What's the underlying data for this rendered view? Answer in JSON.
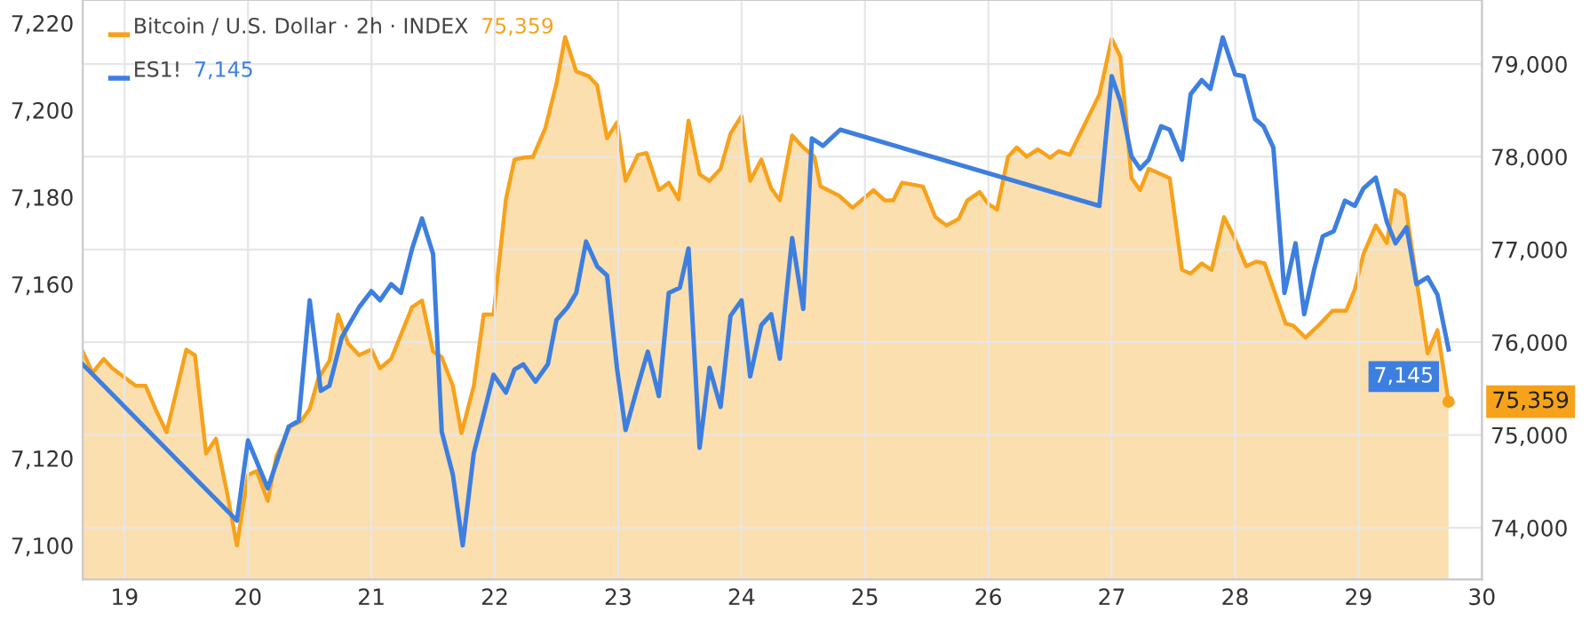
{
  "chart_data": {
    "type": "line",
    "xlim": [
      18.66,
      30.0
    ],
    "xticks": [
      19,
      20,
      21,
      22,
      23,
      24,
      25,
      26,
      27,
      28,
      29,
      30
    ],
    "ylim": [
      7092.2,
      7225.3
    ],
    "yticks": [
      {
        "value": 7100,
        "label": "7,100"
      },
      {
        "value": 7120,
        "label": "7,120"
      },
      {
        "value": 7160,
        "label": "7,160"
      },
      {
        "value": 7180,
        "label": "7,180"
      },
      {
        "value": 7200,
        "label": "7,200"
      },
      {
        "value": 7220,
        "label": "7,220"
      }
    ],
    "y2lim": [
      73444,
      79690
    ],
    "y2ticks": [
      {
        "value": 74000,
        "label": "74,000"
      },
      {
        "value": 75000,
        "label": "75,000"
      },
      {
        "value": 76000,
        "label": "76,000"
      },
      {
        "value": 77000,
        "label": "77,000"
      },
      {
        "value": 78000,
        "label": "78,000"
      },
      {
        "value": 79000,
        "label": "79,000"
      }
    ],
    "grid": true,
    "legend": "top left",
    "annotations": [
      "75,359",
      "7,145"
    ],
    "series": [
      {
        "name": "Bitcoin / U.S. Dollar · 2h · INDEX",
        "type": "area",
        "axis": "y2",
        "color": "#f7a21b",
        "x": [
          18.66,
          18.74,
          18.83,
          18.9,
          19.09,
          19.17,
          19.26,
          19.34,
          19.43,
          19.5,
          19.57,
          19.66,
          19.74,
          19.83,
          19.91,
          20.0,
          20.07,
          20.16,
          20.23,
          20.34,
          20.43,
          20.5,
          20.57,
          20.66,
          20.73,
          20.81,
          20.9,
          21.0,
          21.07,
          21.16,
          21.33,
          21.41,
          21.5,
          21.57,
          21.66,
          21.73,
          21.83,
          21.91,
          21.99,
          22.09,
          22.16,
          22.23,
          22.31,
          22.41,
          22.5,
          22.57,
          22.66,
          22.76,
          22.83,
          22.91,
          22.99,
          23.06,
          23.16,
          23.23,
          23.33,
          23.41,
          23.49,
          23.57,
          23.66,
          23.74,
          23.83,
          23.91,
          24.0,
          24.07,
          24.16,
          24.24,
          24.31,
          24.41,
          24.5,
          24.59,
          24.64,
          24.79,
          24.9,
          25.07,
          25.16,
          25.23,
          25.3,
          25.47,
          25.57,
          25.66,
          25.76,
          25.83,
          25.93,
          26.0,
          26.07,
          26.16,
          26.23,
          26.31,
          26.4,
          26.5,
          26.57,
          26.66,
          26.9,
          27.0,
          27.07,
          27.16,
          27.23,
          27.3,
          27.37,
          27.47,
          27.57,
          27.64,
          27.73,
          27.81,
          27.91,
          27.99,
          28.09,
          28.17,
          28.24,
          28.41,
          28.47,
          28.57,
          28.69,
          28.79,
          28.9,
          28.97,
          29.04,
          29.14,
          29.23,
          29.3,
          29.37,
          29.46,
          29.56,
          29.64,
          29.73
        ],
        "values": [
          75900,
          75670,
          75820,
          75720,
          75530,
          75530,
          75250,
          75030,
          75530,
          75920,
          75860,
          74800,
          74960,
          74380,
          73810,
          74570,
          74610,
          74290,
          74770,
          75090,
          75150,
          75280,
          75610,
          75800,
          76300,
          75990,
          75860,
          75920,
          75720,
          75820,
          76380,
          76450,
          75900,
          75840,
          75530,
          75020,
          75530,
          76300,
          76300,
          77540,
          77970,
          77990,
          78000,
          78310,
          78790,
          79290,
          78920,
          78870,
          78770,
          78200,
          78370,
          77740,
          78020,
          78040,
          77640,
          77720,
          77540,
          78390,
          77810,
          77740,
          77870,
          78250,
          78440,
          77740,
          77970,
          77660,
          77530,
          78230,
          78100,
          78000,
          77680,
          77580,
          77450,
          77640,
          77530,
          77530,
          77720,
          77680,
          77350,
          77260,
          77330,
          77530,
          77620,
          77490,
          77430,
          78000,
          78100,
          78000,
          78080,
          77990,
          78060,
          78020,
          78670,
          79270,
          79080,
          77770,
          77640,
          77870,
          77830,
          77770,
          76780,
          76740,
          76850,
          76780,
          77350,
          77140,
          76820,
          76870,
          76850,
          76200,
          76180,
          76050,
          76200,
          76340,
          76340,
          76570,
          76950,
          77260,
          77070,
          77640,
          77580,
          76760,
          75880,
          76130,
          75359
        ],
        "value_labels": [
          null,
          null,
          null,
          null,
          null,
          null,
          null,
          null,
          null,
          null,
          null,
          null,
          null,
          null,
          null,
          null,
          null,
          null,
          null,
          null,
          null,
          null,
          null,
          null,
          null,
          null,
          null,
          null,
          null,
          null,
          null,
          null,
          null,
          null,
          null,
          null,
          null,
          null,
          null,
          null,
          null,
          null,
          null,
          null,
          null,
          null,
          null,
          null,
          null,
          null,
          null,
          null,
          null,
          null,
          null,
          null,
          null,
          null,
          null,
          null,
          null,
          null,
          null,
          null,
          null,
          null,
          null,
          null,
          null,
          null,
          null,
          null,
          null,
          null,
          null,
          null,
          null,
          null,
          null,
          null,
          null,
          null,
          null,
          null,
          null,
          null,
          null,
          null,
          null,
          null,
          null,
          null,
          null,
          null,
          null,
          null,
          null,
          null,
          null,
          null,
          null,
          null,
          null,
          null,
          null,
          null,
          null,
          null,
          null,
          null,
          null,
          null,
          null,
          null,
          null,
          null,
          null,
          null,
          null,
          null,
          null,
          null,
          null,
          null,
          "75,359"
        ]
      },
      {
        "name": "ES1!",
        "axis": "y",
        "color": "#3d7fe0",
        "x": [
          18.66,
          19.91,
          20.0,
          20.16,
          20.33,
          20.41,
          20.5,
          20.59,
          20.66,
          20.76,
          20.9,
          21.0,
          21.07,
          21.16,
          21.24,
          21.33,
          21.41,
          21.5,
          21.57,
          21.66,
          21.74,
          21.83,
          21.99,
          22.09,
          22.16,
          22.23,
          22.33,
          22.43,
          22.5,
          22.59,
          22.66,
          22.74,
          22.83,
          22.91,
          22.99,
          23.06,
          23.16,
          23.24,
          23.33,
          23.41,
          23.5,
          23.57,
          23.66,
          23.74,
          23.83,
          23.91,
          24.0,
          24.07,
          24.16,
          24.24,
          24.31,
          24.41,
          24.5,
          24.57,
          24.66,
          24.8,
          26.9,
          27.0,
          27.07,
          27.16,
          27.23,
          27.3,
          27.4,
          27.47,
          27.57,
          27.64,
          27.73,
          27.8,
          27.9,
          28.0,
          28.07,
          28.16,
          28.23,
          28.31,
          28.4,
          28.49,
          28.56,
          28.64,
          28.71,
          28.8,
          28.89,
          28.97,
          29.04,
          29.14,
          29.23,
          29.3,
          29.39,
          29.47,
          29.56,
          29.64,
          29.73
        ],
        "values": [
          7141.6,
          7105.7,
          7124.1,
          7113.1,
          7127.3,
          7128.6,
          7156.3,
          7135.5,
          7136.7,
          7147.8,
          7154.7,
          7158.4,
          7156.3,
          7160.0,
          7158.0,
          7168.2,
          7175.1,
          7166.9,
          7126.1,
          7116.3,
          7100.0,
          7121.2,
          7139.2,
          7135.1,
          7140.4,
          7141.6,
          7137.6,
          7141.6,
          7151.8,
          7154.7,
          7158.0,
          7169.8,
          7164.1,
          7162.0,
          7140.8,
          7126.5,
          7136.7,
          7144.5,
          7134.3,
          7158.0,
          7159.2,
          7168.2,
          7122.4,
          7140.8,
          7131.8,
          7152.7,
          7156.3,
          7138.8,
          7150.6,
          7153.1,
          7142.9,
          7170.6,
          7154.3,
          7193.5,
          7191.8,
          7195.5,
          7178.0,
          7207.8,
          7202.0,
          7189.4,
          7186.5,
          7188.6,
          7196.3,
          7195.5,
          7188.6,
          7203.7,
          7206.9,
          7204.9,
          7216.7,
          7208.2,
          7207.8,
          7198.0,
          7196.3,
          7191.4,
          7158.0,
          7169.4,
          7153.1,
          7163.3,
          7171.0,
          7172.2,
          7179.2,
          7178.0,
          7182.0,
          7184.5,
          7174.3,
          7169.4,
          7173.1,
          7160.0,
          7161.6,
          7157.6,
          7145
        ],
        "value_labels": [
          null,
          null,
          null,
          null,
          null,
          null,
          null,
          null,
          null,
          null,
          null,
          null,
          null,
          null,
          null,
          null,
          null,
          null,
          null,
          null,
          null,
          null,
          null,
          null,
          null,
          null,
          null,
          null,
          null,
          null,
          null,
          null,
          null,
          null,
          null,
          null,
          null,
          null,
          null,
          null,
          null,
          null,
          null,
          null,
          null,
          null,
          null,
          null,
          null,
          null,
          null,
          null,
          null,
          null,
          null,
          null,
          null,
          null,
          null,
          null,
          null,
          null,
          null,
          null,
          null,
          null,
          null,
          null,
          null,
          null,
          null,
          null,
          null,
          null,
          null,
          null,
          null,
          null,
          null,
          null,
          null,
          null,
          null,
          null,
          null,
          null,
          null,
          null,
          null,
          null,
          "7,145"
        ]
      }
    ]
  }
}
